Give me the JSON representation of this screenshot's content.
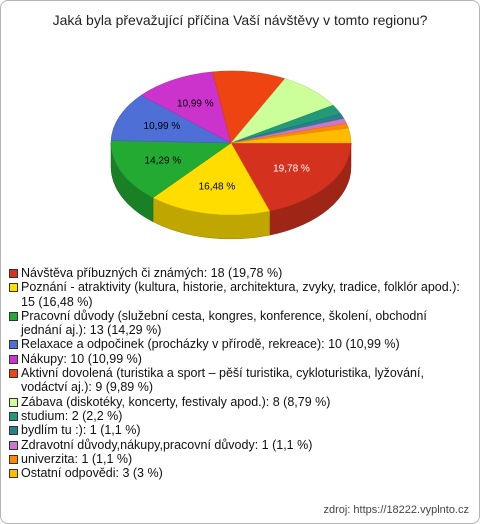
{
  "chart_data": {
    "type": "pie3d",
    "title": "Jaká byla převažující příčina Vaší návštěvy v tomto regionu?",
    "categories": [
      "Návštěva příbuzných či známých: 18 (19,78 %)",
      "Poznání - atraktivity (kultura, historie, architektura, zvyky, tradice, folklór apod.): 15 (16,48 %)",
      "Pracovní důvody (služební cesta, kongres, konference, školení, obchodní jednání aj.): 13 (14,29 %)",
      "Relaxace a odpočinek (procházky v přírodě, rekreace): 10 (10,99 %)",
      "Nákupy: 10 (10,99 %)",
      "Aktivní dovolená (turistika a sport – pěší turistika, cykloturistika, lyžování, vodáctví aj.): 9 (9,89 %)",
      "Zábava (diskotéky, koncerty, festivaly apod.): 8 (8,79 %)",
      "studium: 2 (2,2 %)",
      "bydlím tu :): 1 (1,1 %)",
      "Zdravotní důvody,nákupy,pracovní důvody: 1 (1,1 %)",
      "univerzita: 1 (1,1 %)",
      "Ostatní odpovědi: 3 (3 %)"
    ],
    "values": [
      18,
      15,
      13,
      10,
      10,
      9,
      8,
      2,
      1,
      1,
      1,
      3
    ],
    "value_labels": [
      "19,78 %",
      "16,48 %",
      "14,29 %",
      "10,99 %",
      "10,99 %",
      null,
      null,
      null,
      null,
      null,
      null,
      null
    ],
    "colors": [
      "#d4321e",
      "#ffdd00",
      "#22aa33",
      "#4d6fd6",
      "#cc33cc",
      "#ee4411",
      "#ccff99",
      "#229977",
      "#2a7f8f",
      "#cc77cc",
      "#ff8800",
      "#ffbb00"
    ],
    "source": "zdroj: https://18222.vyplnto.cz"
  }
}
